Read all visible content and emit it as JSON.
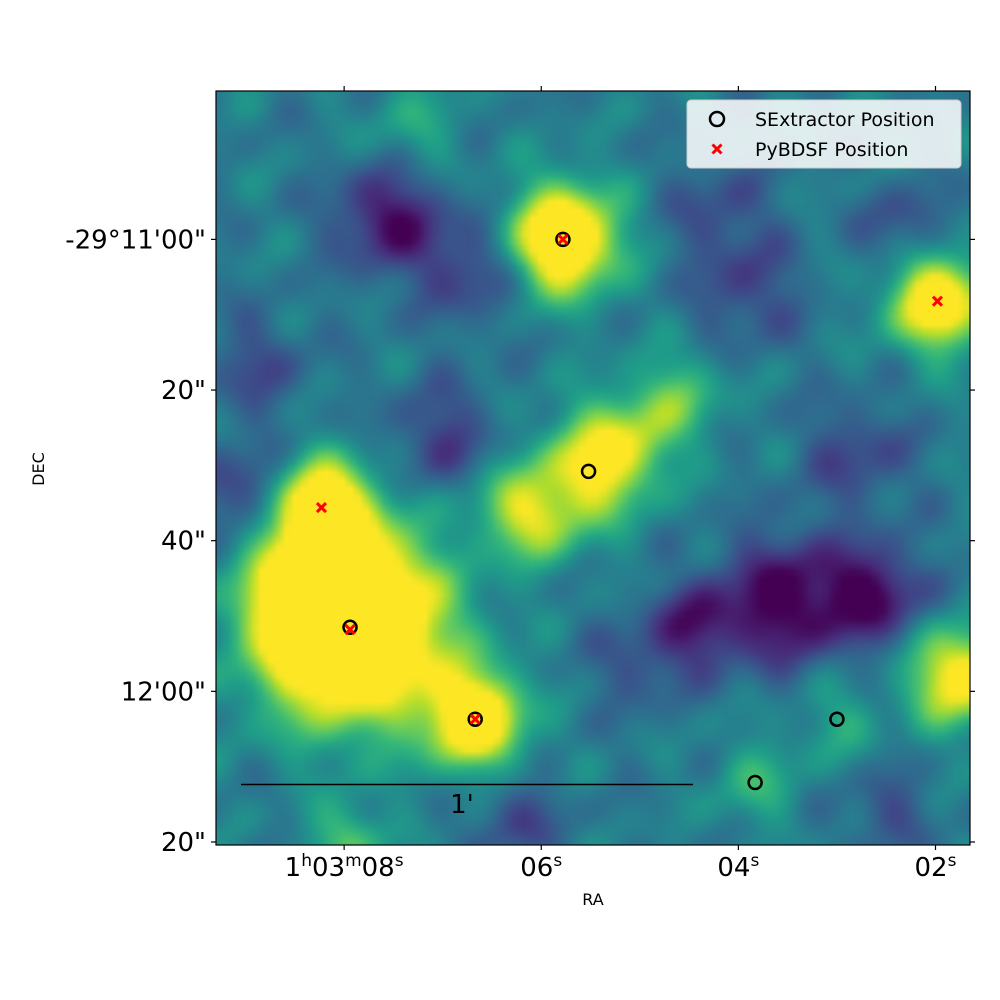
{
  "chart_data": {
    "type": "scatter",
    "xlabel": "RA",
    "ylabel": "DEC",
    "x_ticks": [
      {
        "sec": 8,
        "main": "1",
        "sup1": "h",
        "mid": "03",
        "sup2": "m",
        "tail": "08",
        "sup3": "s"
      },
      {
        "sec": 6,
        "main": "06",
        "sup3": "s"
      },
      {
        "sec": 4,
        "main": "04",
        "sup3": "s"
      },
      {
        "sec": 2,
        "main": "02",
        "sup3": "s"
      }
    ],
    "y_ticks": [
      {
        "offset_arcsec": 60,
        "label": "-29°11'00\""
      },
      {
        "offset_arcsec": 80,
        "label": "20\""
      },
      {
        "offset_arcsec": 100,
        "label": "40\""
      },
      {
        "offset_arcsec": 120,
        "label": "12'00\""
      },
      {
        "offset_arcsec": 140,
        "label": "20\""
      }
    ],
    "xlim_sec": [
      9.3,
      1.65
    ],
    "ylim_arcsec": [
      40.3,
      140.4
    ],
    "colormap": "viridis",
    "colors": {
      "low": "#440154",
      "mid": "#21918c",
      "high": "#fde725",
      "sextractor": "#000000",
      "pybdsf": "#ff0000"
    },
    "series": [
      {
        "name": "SExtractor Position",
        "marker": "circle",
        "points": [
          {
            "ra_sec": 5.78,
            "dec_arcsec": 60.0
          },
          {
            "ra_sec": 5.52,
            "dec_arcsec": 90.8
          },
          {
            "ra_sec": 7.94,
            "dec_arcsec": 111.5
          },
          {
            "ra_sec": 6.67,
            "dec_arcsec": 123.7
          },
          {
            "ra_sec": 3.0,
            "dec_arcsec": 123.7
          },
          {
            "ra_sec": 3.83,
            "dec_arcsec": 132.1
          }
        ]
      },
      {
        "name": "PyBDSF Position",
        "marker": "x",
        "points": [
          {
            "ra_sec": 5.78,
            "dec_arcsec": 60.0
          },
          {
            "ra_sec": 1.98,
            "dec_arcsec": 68.2
          },
          {
            "ra_sec": 8.23,
            "dec_arcsec": 95.6
          },
          {
            "ra_sec": 7.94,
            "dec_arcsec": 111.8
          },
          {
            "ra_sec": 6.67,
            "dec_arcsec": 123.7
          }
        ]
      }
    ],
    "blobs": [
      {
        "ra_sec": 5.78,
        "dec_arcsec": 60.0,
        "amp": 2.6,
        "sigma": 5.0
      },
      {
        "ra_sec": 1.98,
        "dec_arcsec": 68.2,
        "amp": 2.2,
        "sigma": 4.5
      },
      {
        "ra_sec": 1.75,
        "dec_arcsec": 118.0,
        "amp": 2.0,
        "sigma": 4.5
      },
      {
        "ra_sec": 7.94,
        "dec_arcsec": 111.5,
        "amp": 3.4,
        "sigma": 8.5
      },
      {
        "ra_sec": 8.25,
        "dec_arcsec": 106.5,
        "amp": 1.8,
        "sigma": 5.5
      },
      {
        "ra_sec": 8.23,
        "dec_arcsec": 95.6,
        "amp": 2.2,
        "sigma": 4.5
      },
      {
        "ra_sec": 6.67,
        "dec_arcsec": 123.7,
        "amp": 2.3,
        "sigma": 4.5
      },
      {
        "ra_sec": 5.52,
        "dec_arcsec": 90.8,
        "amp": 1.5,
        "sigma": 5.0
      },
      {
        "ra_sec": 5.1,
        "dec_arcsec": 86.5,
        "amp": 1.0,
        "sigma": 4.5
      },
      {
        "ra_sec": 4.6,
        "dec_arcsec": 80.5,
        "amp": 0.8,
        "sigma": 4.0
      },
      {
        "ra_sec": 6.05,
        "dec_arcsec": 97.5,
        "amp": 1.1,
        "sigma": 4.0
      },
      {
        "ra_sec": 6.4,
        "dec_arcsec": 94.5,
        "amp": 0.6,
        "sigma": 4.0
      },
      {
        "ra_sec": 3.83,
        "dec_arcsec": 132.1,
        "amp": 0.6,
        "sigma": 4.0
      },
      {
        "ra_sec": 3.0,
        "dec_arcsec": 123.7,
        "amp": 0.5,
        "sigma": 4.0
      },
      {
        "ra_sec": 7.95,
        "dec_arcsec": 140.0,
        "amp": 0.9,
        "sigma": 3.5
      },
      {
        "ra_sec": 7.3,
        "dec_arcsec": 45.5,
        "amp": 0.5,
        "sigma": 4.5
      },
      {
        "ra_sec": 3.5,
        "dec_arcsec": 108.0,
        "amp": -1.3,
        "sigma": 6.0
      },
      {
        "ra_sec": 2.6,
        "dec_arcsec": 107.0,
        "amp": -1.1,
        "sigma": 4.5
      },
      {
        "ra_sec": 4.4,
        "dec_arcsec": 111.0,
        "amp": -0.9,
        "sigma": 4.0
      },
      {
        "ra_sec": 7.55,
        "dec_arcsec": 57.0,
        "amp": -1.1,
        "sigma": 5.0
      },
      {
        "ra_sec": 6.7,
        "dec_arcsec": 64.0,
        "amp": -0.7,
        "sigma": 5.0
      },
      {
        "ra_sec": 9.0,
        "dec_arcsec": 94.0,
        "amp": -0.8,
        "sigma": 4.5
      },
      {
        "ra_sec": 7.0,
        "dec_arcsec": 86.5,
        "amp": -0.7,
        "sigma": 5.0
      },
      {
        "ra_sec": 3.9,
        "dec_arcsec": 67.0,
        "amp": -0.6,
        "sigma": 5.0
      },
      {
        "ra_sec": 2.8,
        "dec_arcsec": 88.5,
        "amp": -0.6,
        "sigma": 5.0
      },
      {
        "ra_sec": 4.2,
        "dec_arcsec": 56.0,
        "amp": -0.5,
        "sigma": 5.0
      },
      {
        "ra_sec": 6.25,
        "dec_arcsec": 137.0,
        "amp": -0.6,
        "sigma": 4.0
      },
      {
        "ra_sec": 8.9,
        "dec_arcsec": 77.0,
        "amp": -0.5,
        "sigma": 5.0
      },
      {
        "ra_sec": 2.3,
        "dec_arcsec": 58.5,
        "amp": -0.6,
        "sigma": 4.0
      },
      {
        "ra_sec": 5.0,
        "dec_arcsec": 116.0,
        "amp": -0.5,
        "sigma": 4.5
      },
      {
        "ra_sec": 2.5,
        "dec_arcsec": 136.0,
        "amp": -0.5,
        "sigma": 4.0
      }
    ],
    "scalebar": {
      "label": "1'"
    },
    "legend": {
      "placement": "top-right",
      "entries": [
        "SExtractor Position",
        "PyBDSF Position"
      ]
    }
  }
}
